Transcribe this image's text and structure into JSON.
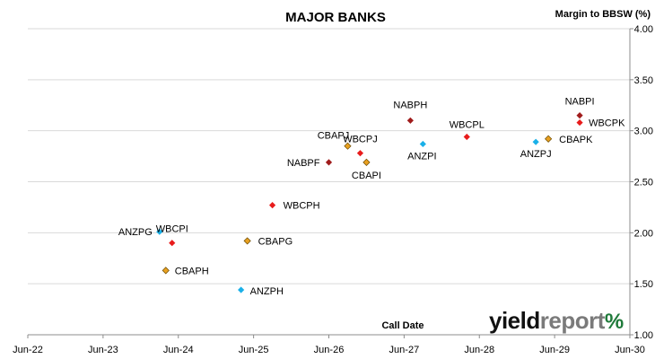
{
  "chart_data": {
    "type": "scatter",
    "title": "MAJOR BANKS",
    "ylabel": "Margin to BBSW (%)",
    "xlabel": "Call Date",
    "x_ticks": [
      "Jun-22",
      "Jun-23",
      "Jun-24",
      "Jun-25",
      "Jun-26",
      "Jun-27",
      "Jun-28",
      "Jun-29",
      "Jun-30"
    ],
    "y_ticks": [
      "1.00",
      "1.50",
      "2.00",
      "2.50",
      "3.00",
      "3.50",
      "4.00"
    ],
    "xlim": [
      "2022-06",
      "2030-06"
    ],
    "ylim": [
      1.0,
      4.0
    ],
    "y_axis_side": "right",
    "grid": true,
    "legend": "none",
    "series": [
      {
        "color": "#1ab0e8",
        "points": [
          {
            "label": "ANZPG",
            "x": "2024-03",
            "y": 2.01
          },
          {
            "label": "ANZPH",
            "x": "2025-04",
            "y": 1.44
          },
          {
            "label": "ANZPI",
            "x": "2027-09",
            "y": 2.87
          },
          {
            "label": "ANZPJ",
            "x": "2029-03",
            "y": 2.89
          }
        ]
      },
      {
        "color": "#e8a020",
        "points": [
          {
            "label": "CBAPH",
            "x": "2024-04",
            "y": 1.63
          },
          {
            "label": "CBAPG",
            "x": "2025-05",
            "y": 1.92
          },
          {
            "label": "CBAPJ",
            "x": "2026-09",
            "y": 2.85
          },
          {
            "label": "CBAPI",
            "x": "2026-12",
            "y": 2.69
          },
          {
            "label": "CBAPK",
            "x": "2029-05",
            "y": 2.92
          }
        ]
      },
      {
        "color": "#e81c1c",
        "points": [
          {
            "label": "WBCPI",
            "x": "2024-05",
            "y": 1.9
          },
          {
            "label": "WBCPH",
            "x": "2025-09",
            "y": 2.27
          },
          {
            "label": "WBCPJ",
            "x": "2026-11",
            "y": 2.78
          },
          {
            "label": "WBCPL",
            "x": "2028-04",
            "y": 2.94
          },
          {
            "label": "WBCPK",
            "x": "2029-10",
            "y": 3.08
          }
        ]
      },
      {
        "color": "#a01c1c",
        "points": [
          {
            "label": "NABPF",
            "x": "2026-06",
            "y": 2.69
          },
          {
            "label": "NABPH",
            "x": "2027-07",
            "y": 3.1
          },
          {
            "label": "NABPI",
            "x": "2029-10",
            "y": 3.15
          }
        ]
      }
    ]
  },
  "logo": {
    "part1": "yield",
    "part2": "report",
    "symbol": "%"
  }
}
